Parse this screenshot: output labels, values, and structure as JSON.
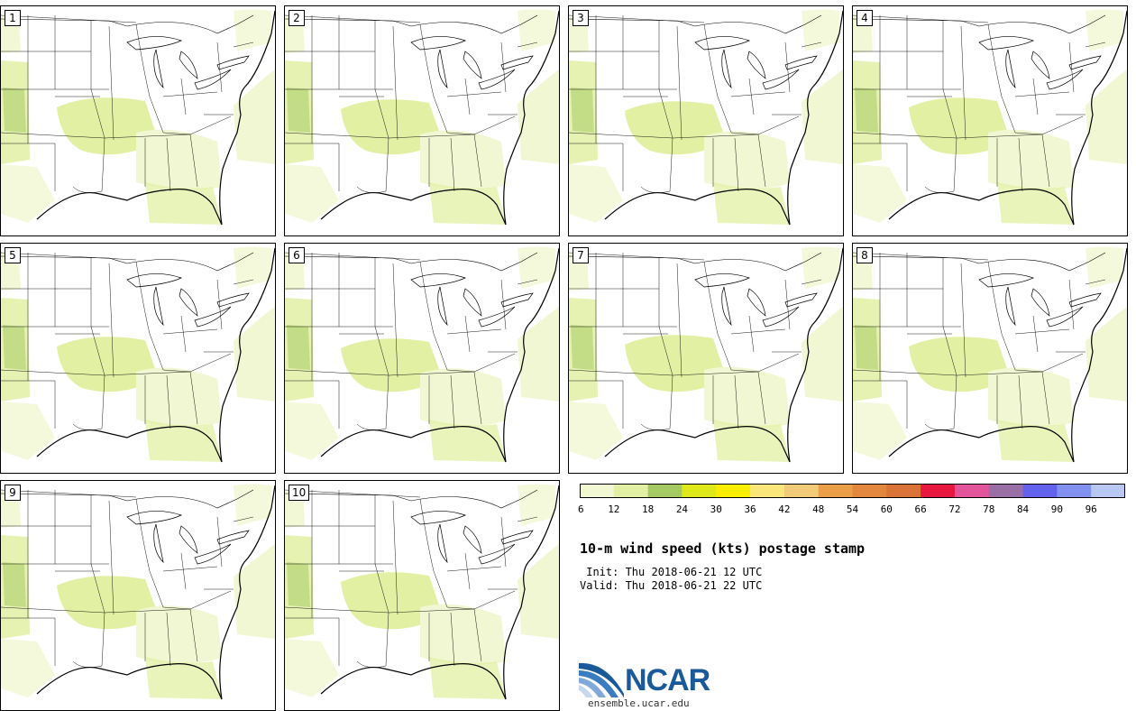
{
  "figure": {
    "title": "10-m wind speed (kts) postage stamp",
    "init": " Init: Thu 2018-06-21 12 UTC",
    "valid": "Valid: Thu 2018-06-21 22 UTC",
    "website": "ensemble.ucar.edu",
    "logo_text": "NCAR"
  },
  "members": [
    "1",
    "2",
    "3",
    "4",
    "5",
    "6",
    "7",
    "8",
    "9",
    "10"
  ],
  "colorbar": {
    "ticks": [
      "6",
      "12",
      "18",
      "24",
      "30",
      "36",
      "42",
      "48",
      "54",
      "60",
      "66",
      "72",
      "78",
      "84",
      "90",
      "96"
    ],
    "colors": [
      "#f1f7d2",
      "#e2f0a4",
      "#a6ca63",
      "#dfe91a",
      "#f9ee00",
      "#fbe67c",
      "#f2cb78",
      "#eb9e48",
      "#e2873d",
      "#d97337",
      "#e8173f",
      "#e2559a",
      "#9a6fa6",
      "#6262ed",
      "#8291f0",
      "#b9c7f5"
    ]
  },
  "map": {
    "land_fill": "#ffffff",
    "weak_wind_color": "#f1f7d2",
    "moderate_wind_color": "#e2f0a4",
    "strong_wind_color": "#a6ca63"
  }
}
